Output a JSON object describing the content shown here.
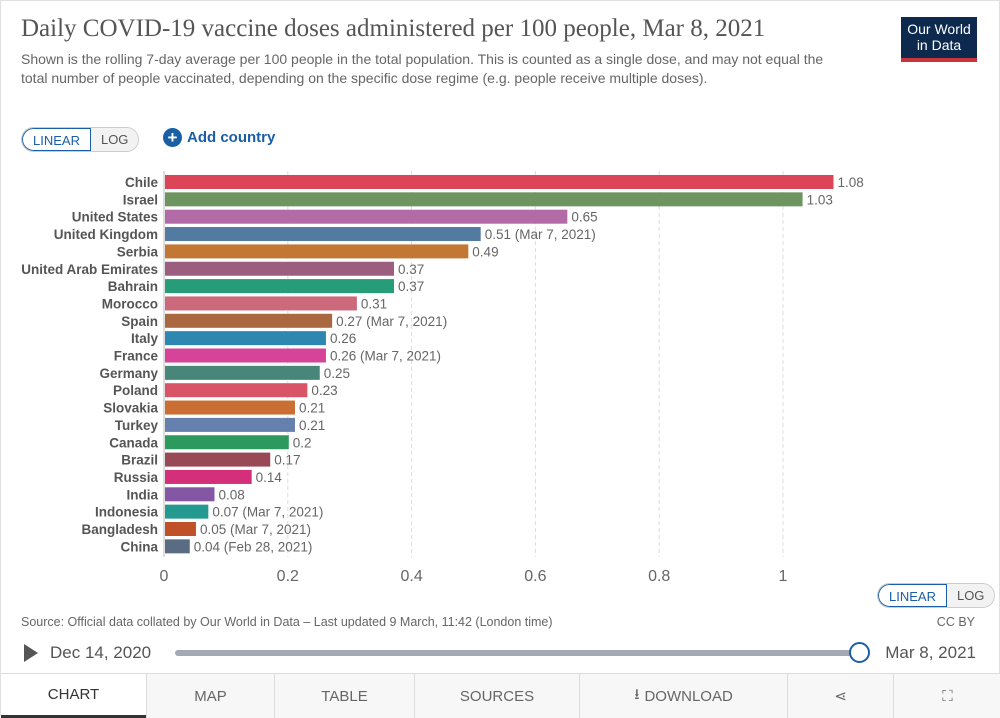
{
  "header": {
    "title": "Daily COVID-19 vaccine doses administered per 100 people, Mar 8, 2021",
    "subtitle": "Shown is the rolling 7-day average per 100 people in the total population. This is counted as a single dose, and may not equal the total number of people vaccinated, depending on the specific dose regime (e.g. people receive multiple doses).",
    "logo": "Our World in Data"
  },
  "controls": {
    "linear": "LINEAR",
    "log": "LOG",
    "add_country": "Add country",
    "add_icon": "plus-circle-icon"
  },
  "chart_data": {
    "type": "bar",
    "orientation": "horizontal",
    "xlim": [
      0,
      1.1
    ],
    "grid": true,
    "ticks": [
      "0",
      "0.2",
      "0.4",
      "0.6",
      "0.8",
      "1"
    ],
    "categories": [
      "Chile",
      "Israel",
      "United States",
      "United Kingdom",
      "Serbia",
      "United Arab Emirates",
      "Bahrain",
      "Morocco",
      "Spain",
      "Italy",
      "France",
      "Germany",
      "Poland",
      "Slovakia",
      "Turkey",
      "Canada",
      "Brazil",
      "Russia",
      "India",
      "Indonesia",
      "Bangladesh",
      "China"
    ],
    "values": [
      1.08,
      1.03,
      0.65,
      0.51,
      0.49,
      0.37,
      0.37,
      0.31,
      0.27,
      0.26,
      0.26,
      0.25,
      0.23,
      0.21,
      0.21,
      0.2,
      0.17,
      0.14,
      0.08,
      0.07,
      0.05,
      0.04
    ],
    "labels": [
      "1.08",
      "1.03",
      "0.65",
      "0.51 (Mar 7, 2021)",
      "0.49",
      "0.37",
      "0.37",
      "0.31",
      "0.27 (Mar 7, 2021)",
      "0.26",
      "0.26 (Mar 7, 2021)",
      "0.25",
      "0.23",
      "0.21",
      "0.21",
      "0.2",
      "0.17",
      "0.14",
      "0.08",
      "0.07 (Mar 7, 2021)",
      "0.05 (Mar 7, 2021)",
      "0.04 (Feb 28, 2021)"
    ],
    "colors": [
      "#dc4458",
      "#6e9460",
      "#b26ba7",
      "#537aa0",
      "#c37734",
      "#9c5e7e",
      "#269c78",
      "#cc6a7c",
      "#a9683f",
      "#2e87b0",
      "#d6449a",
      "#488679",
      "#da5468",
      "#cb6e33",
      "#6680ad",
      "#2c9a5c",
      "#994856",
      "#d42f79",
      "#8357a3",
      "#24998f",
      "#c05027",
      "#5a6b84"
    ]
  },
  "footer": {
    "source": "Source: Official data collated by Our World in Data – Last updated 9 March, 11:42 (London time)",
    "license": "CC BY",
    "timeline_start": "Dec 14, 2020",
    "timeline_end": "Mar 8, 2021",
    "timeline_position": 1.0
  },
  "tabs": [
    "CHART",
    "MAP",
    "TABLE",
    "SOURCES",
    "DOWNLOAD"
  ],
  "tab_icons": {
    "download": "download-icon",
    "share": "share-icon",
    "fullscreen": "fullscreen-icon"
  }
}
